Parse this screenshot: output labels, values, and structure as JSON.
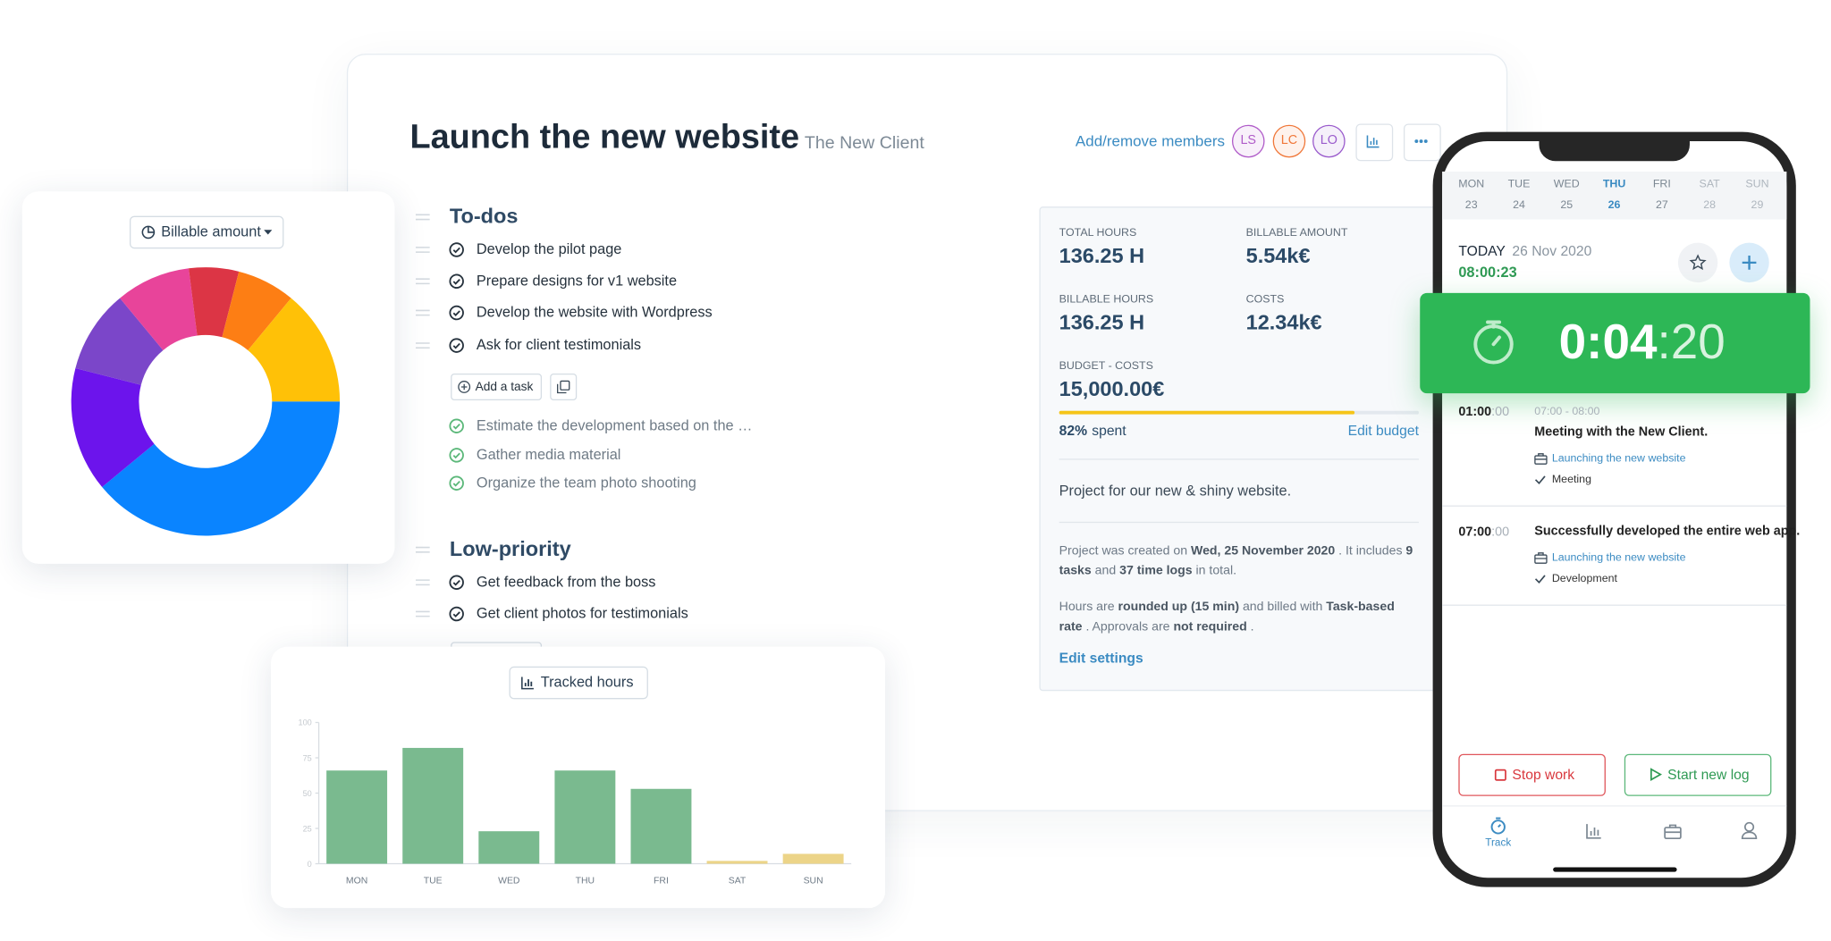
{
  "project": {
    "title": "Launch the new website",
    "client": "The New Client",
    "add_members": "Add/remove members",
    "members": [
      {
        "initials": "LS",
        "color": "#b05cc9"
      },
      {
        "initials": "LC",
        "color": "#f0783a"
      },
      {
        "initials": "LO",
        "color": "#9a5bcc"
      }
    ]
  },
  "todos": {
    "heading": "To-dos",
    "open": [
      "Develop the pilot page",
      "Prepare designs for v1 website",
      "Develop the website with Wordpress",
      "Ask for client testimonials"
    ],
    "add_task": "Add a task",
    "done": [
      "Estimate the development based on the …",
      "Gather media material",
      "Organize the team photo shooting"
    ]
  },
  "low_priority": {
    "heading": "Low-priority",
    "open": [
      "Get feedback from the boss",
      "Get client photos for testimonials"
    ]
  },
  "stats": {
    "items": [
      {
        "label": "TOTAL HOURS",
        "value": "136.25 H"
      },
      {
        "label": "BILLABLE AMOUNT",
        "value": "5.54k€"
      },
      {
        "label": "BILLABLE HOURS",
        "value": "136.25 H"
      },
      {
        "label": "COSTS",
        "value": "12.34k€"
      },
      {
        "label": "BUDGET - COSTS",
        "value": "15,000.00€"
      }
    ],
    "spent": 82,
    "spent_label": "82%",
    "spent_text": "spent",
    "edit_budget": "Edit budget",
    "description": "Project for our new & shiny website.",
    "created_note": [
      "Project was created on ",
      "Wed, 25 November 2020",
      " . It includes ",
      "9 tasks",
      " and ",
      "37 time logs",
      " in total."
    ],
    "billing_note": [
      "Hours are ",
      "rounded up (15 min)",
      " and billed with ",
      "Task-based rate",
      " . Approvals are ",
      "not required",
      " ."
    ],
    "edit_settings": "Edit settings"
  },
  "phone": {
    "days": [
      {
        "day": "MON",
        "date": "23"
      },
      {
        "day": "TUE",
        "date": "24"
      },
      {
        "day": "WED",
        "date": "25"
      },
      {
        "day": "THU",
        "date": "26"
      },
      {
        "day": "FRI",
        "date": "27"
      },
      {
        "day": "SAT",
        "date": "28"
      },
      {
        "day": "SUN",
        "date": "29"
      }
    ],
    "active_day": 3,
    "today": "TODAY",
    "date": "26 Nov 2020",
    "today_time": "08:00:23",
    "timer_main": "0:04",
    "timer_seconds": ":20",
    "logs": [
      {
        "start": "01:00",
        "start_seconds": ":00",
        "range": "07:00 - 08:00",
        "title": "Meeting with the New Client.",
        "project": "Launching the new website",
        "tag": "Meeting"
      },
      {
        "start": "07:00",
        "start_seconds": ":00",
        "title": "Successfully developed the entire web app.",
        "project": "Launching the new website",
        "tag": "Development"
      }
    ],
    "stop": "Stop work",
    "start": "Start new log",
    "nav_label": "Track"
  },
  "chart_data": [
    {
      "type": "donut",
      "title": "Billable amount",
      "values": [
        39,
        15,
        10,
        9,
        6,
        7,
        14
      ],
      "colors": [
        "#0a84ff",
        "#6c14ec",
        "#7b46c9",
        "#e8449a",
        "#dc3545",
        "#fd7e14",
        "#ffc107"
      ]
    },
    {
      "type": "bar",
      "title": "Tracked hours",
      "categories": [
        "MON",
        "TUE",
        "WED",
        "THU",
        "FRI",
        "SAT",
        "SUN"
      ],
      "values": [
        66,
        82,
        23,
        66,
        53,
        2,
        7
      ],
      "colors": [
        "#7aba8f",
        "#7aba8f",
        "#7aba8f",
        "#7aba8f",
        "#7aba8f",
        "#ecd488",
        "#ecd488"
      ],
      "ylim": [
        0,
        100
      ],
      "yticks": [
        0,
        25,
        50,
        75,
        100
      ]
    }
  ]
}
